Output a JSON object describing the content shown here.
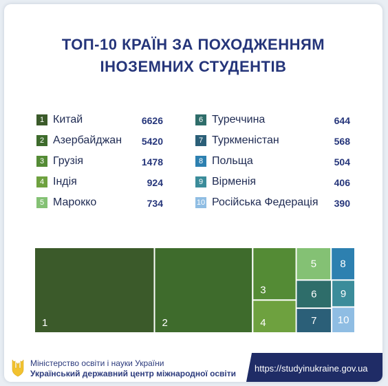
{
  "title_line1": "ТОП-10 КРАЇН ЗА ПОХОДЖЕННЯМ",
  "title_line2": "ІНОЗЕМНИХ СТУДЕНТІВ",
  "chart_data": {
    "type": "treemap",
    "categories": [
      "Китай",
      "Азербайджан",
      "Грузія",
      "Індія",
      "Марокко",
      "Туреччина",
      "Туркменістан",
      "Польща",
      "Вірменія",
      "Російська Федерація"
    ],
    "values": [
      6626,
      5420,
      1478,
      924,
      734,
      644,
      568,
      504,
      406,
      390
    ],
    "ranks": [
      "1",
      "2",
      "3",
      "4",
      "5",
      "6",
      "7",
      "8",
      "9",
      "10"
    ],
    "colors": [
      "#3b5a2a",
      "#3e6b2c",
      "#548b35",
      "#6ea13f",
      "#84c174",
      "#2e6d6a",
      "#2b5f78",
      "#2d80b0",
      "#3b8c9a",
      "#8fbde3"
    ]
  },
  "footer": {
    "ministry": "Міністерство освіти і науки України",
    "center": "Український державний центр міжнародної освіти",
    "url": "https://studyinukraine.gov.ua"
  }
}
